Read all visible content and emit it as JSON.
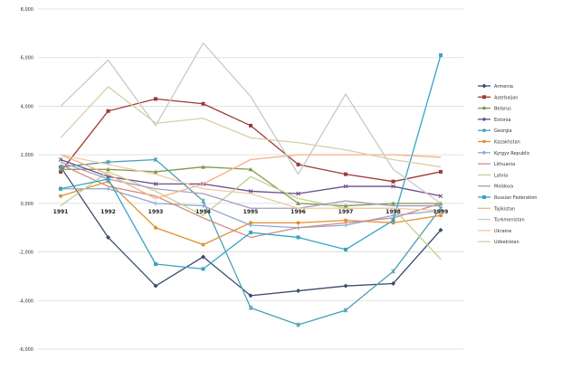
{
  "chart_data": {
    "type": "line",
    "title": "",
    "xlabel": "",
    "ylabel": "",
    "ylim": [
      -6000,
      8000
    ],
    "yticks": [
      -6000,
      -4000,
      -2000,
      0,
      2000,
      4000,
      6000,
      8000
    ],
    "ytick_labels": [
      "-6,000",
      "-4,000",
      "-2,000",
      "0,000",
      "2,000",
      "4,000",
      "6,000",
      "8,000"
    ],
    "categories": [
      "1991",
      "1992",
      "1993",
      "1994",
      "1995",
      "1996",
      "1997",
      "1998",
      "1999"
    ],
    "grid": "horizontal",
    "legend_position": "right",
    "series": [
      {
        "name": "Armenia",
        "color": "#3c4a6e",
        "marker": "diamond",
        "values": [
          1500,
          -1400,
          -3400,
          -2200,
          -3800,
          -3600,
          -3400,
          -3300,
          -1100
        ]
      },
      {
        "name": "Azerbaijan",
        "color": "#9b3a37",
        "marker": "square",
        "values": [
          1300,
          3800,
          4300,
          4100,
          3200,
          1600,
          1200,
          900,
          1300
        ]
      },
      {
        "name": "Belarus",
        "color": "#7f9a4a",
        "marker": "triangle",
        "values": [
          1400,
          1400,
          1300,
          1500,
          1400,
          0,
          -100,
          0,
          0
        ]
      },
      {
        "name": "Estonia",
        "color": "#6a4d8c",
        "marker": "x",
        "values": [
          1800,
          1100,
          800,
          800,
          500,
          400,
          700,
          700,
          300
        ]
      },
      {
        "name": "Georgia",
        "color": "#4aa0b5",
        "marker": "star",
        "values": [
          1500,
          1700,
          1800,
          100,
          -4300,
          -5000,
          -4400,
          -2800,
          -200
        ]
      },
      {
        "name": "Kazakhstan",
        "color": "#e0902a",
        "marker": "circle",
        "values": [
          300,
          900,
          -1000,
          -1700,
          -800,
          -800,
          -700,
          -800,
          -500
        ]
      },
      {
        "name": "Kyrgyz Republic",
        "color": "#8fa8d0",
        "marker": "plus",
        "values": [
          600,
          600,
          0,
          -100,
          -900,
          -1000,
          -900,
          -500,
          -300
        ]
      },
      {
        "name": "Lithuania",
        "color": "#d08a88",
        "marker": "none",
        "values": [
          1600,
          700,
          300,
          -600,
          -1400,
          -1000,
          -800,
          -600,
          0
        ]
      },
      {
        "name": "Latvia",
        "color": "#c3d08e",
        "marker": "none",
        "values": [
          -100,
          1300,
          500,
          -500,
          1100,
          200,
          -200,
          -200,
          -2300
        ]
      },
      {
        "name": "Moldova",
        "color": "#a89cc0",
        "marker": "none",
        "values": [
          1700,
          1000,
          600,
          400,
          -200,
          -200,
          100,
          -100,
          -100
        ]
      },
      {
        "name": "Russian Federation",
        "color": "#35a4c5",
        "marker": "square",
        "values": [
          600,
          1000,
          -2500,
          -2700,
          -1200,
          -1400,
          -1900,
          -700,
          6100
        ]
      },
      {
        "name": "Tajikistan",
        "color": "#f4b183",
        "marker": "none",
        "values": [
          2000,
          1200,
          200,
          800,
          1800,
          2000,
          2000,
          2000,
          1900
        ]
      },
      {
        "name": "Turkmenistan",
        "color": "#c9c9c9",
        "marker": "none",
        "values": [
          4000,
          5900,
          3200,
          6600,
          4400,
          1200,
          4500,
          1400,
          0
        ]
      },
      {
        "name": "Ukraine",
        "color": "#f2c9a4",
        "marker": "none",
        "values": [
          2000,
          1600,
          1200,
          600,
          400,
          -200,
          -200,
          -200,
          -300
        ]
      },
      {
        "name": "Uzbekistan",
        "color": "#d5cfa8",
        "marker": "none",
        "values": [
          2700,
          4800,
          3300,
          3500,
          2700,
          2500,
          2200,
          1800,
          1500
        ]
      }
    ]
  }
}
